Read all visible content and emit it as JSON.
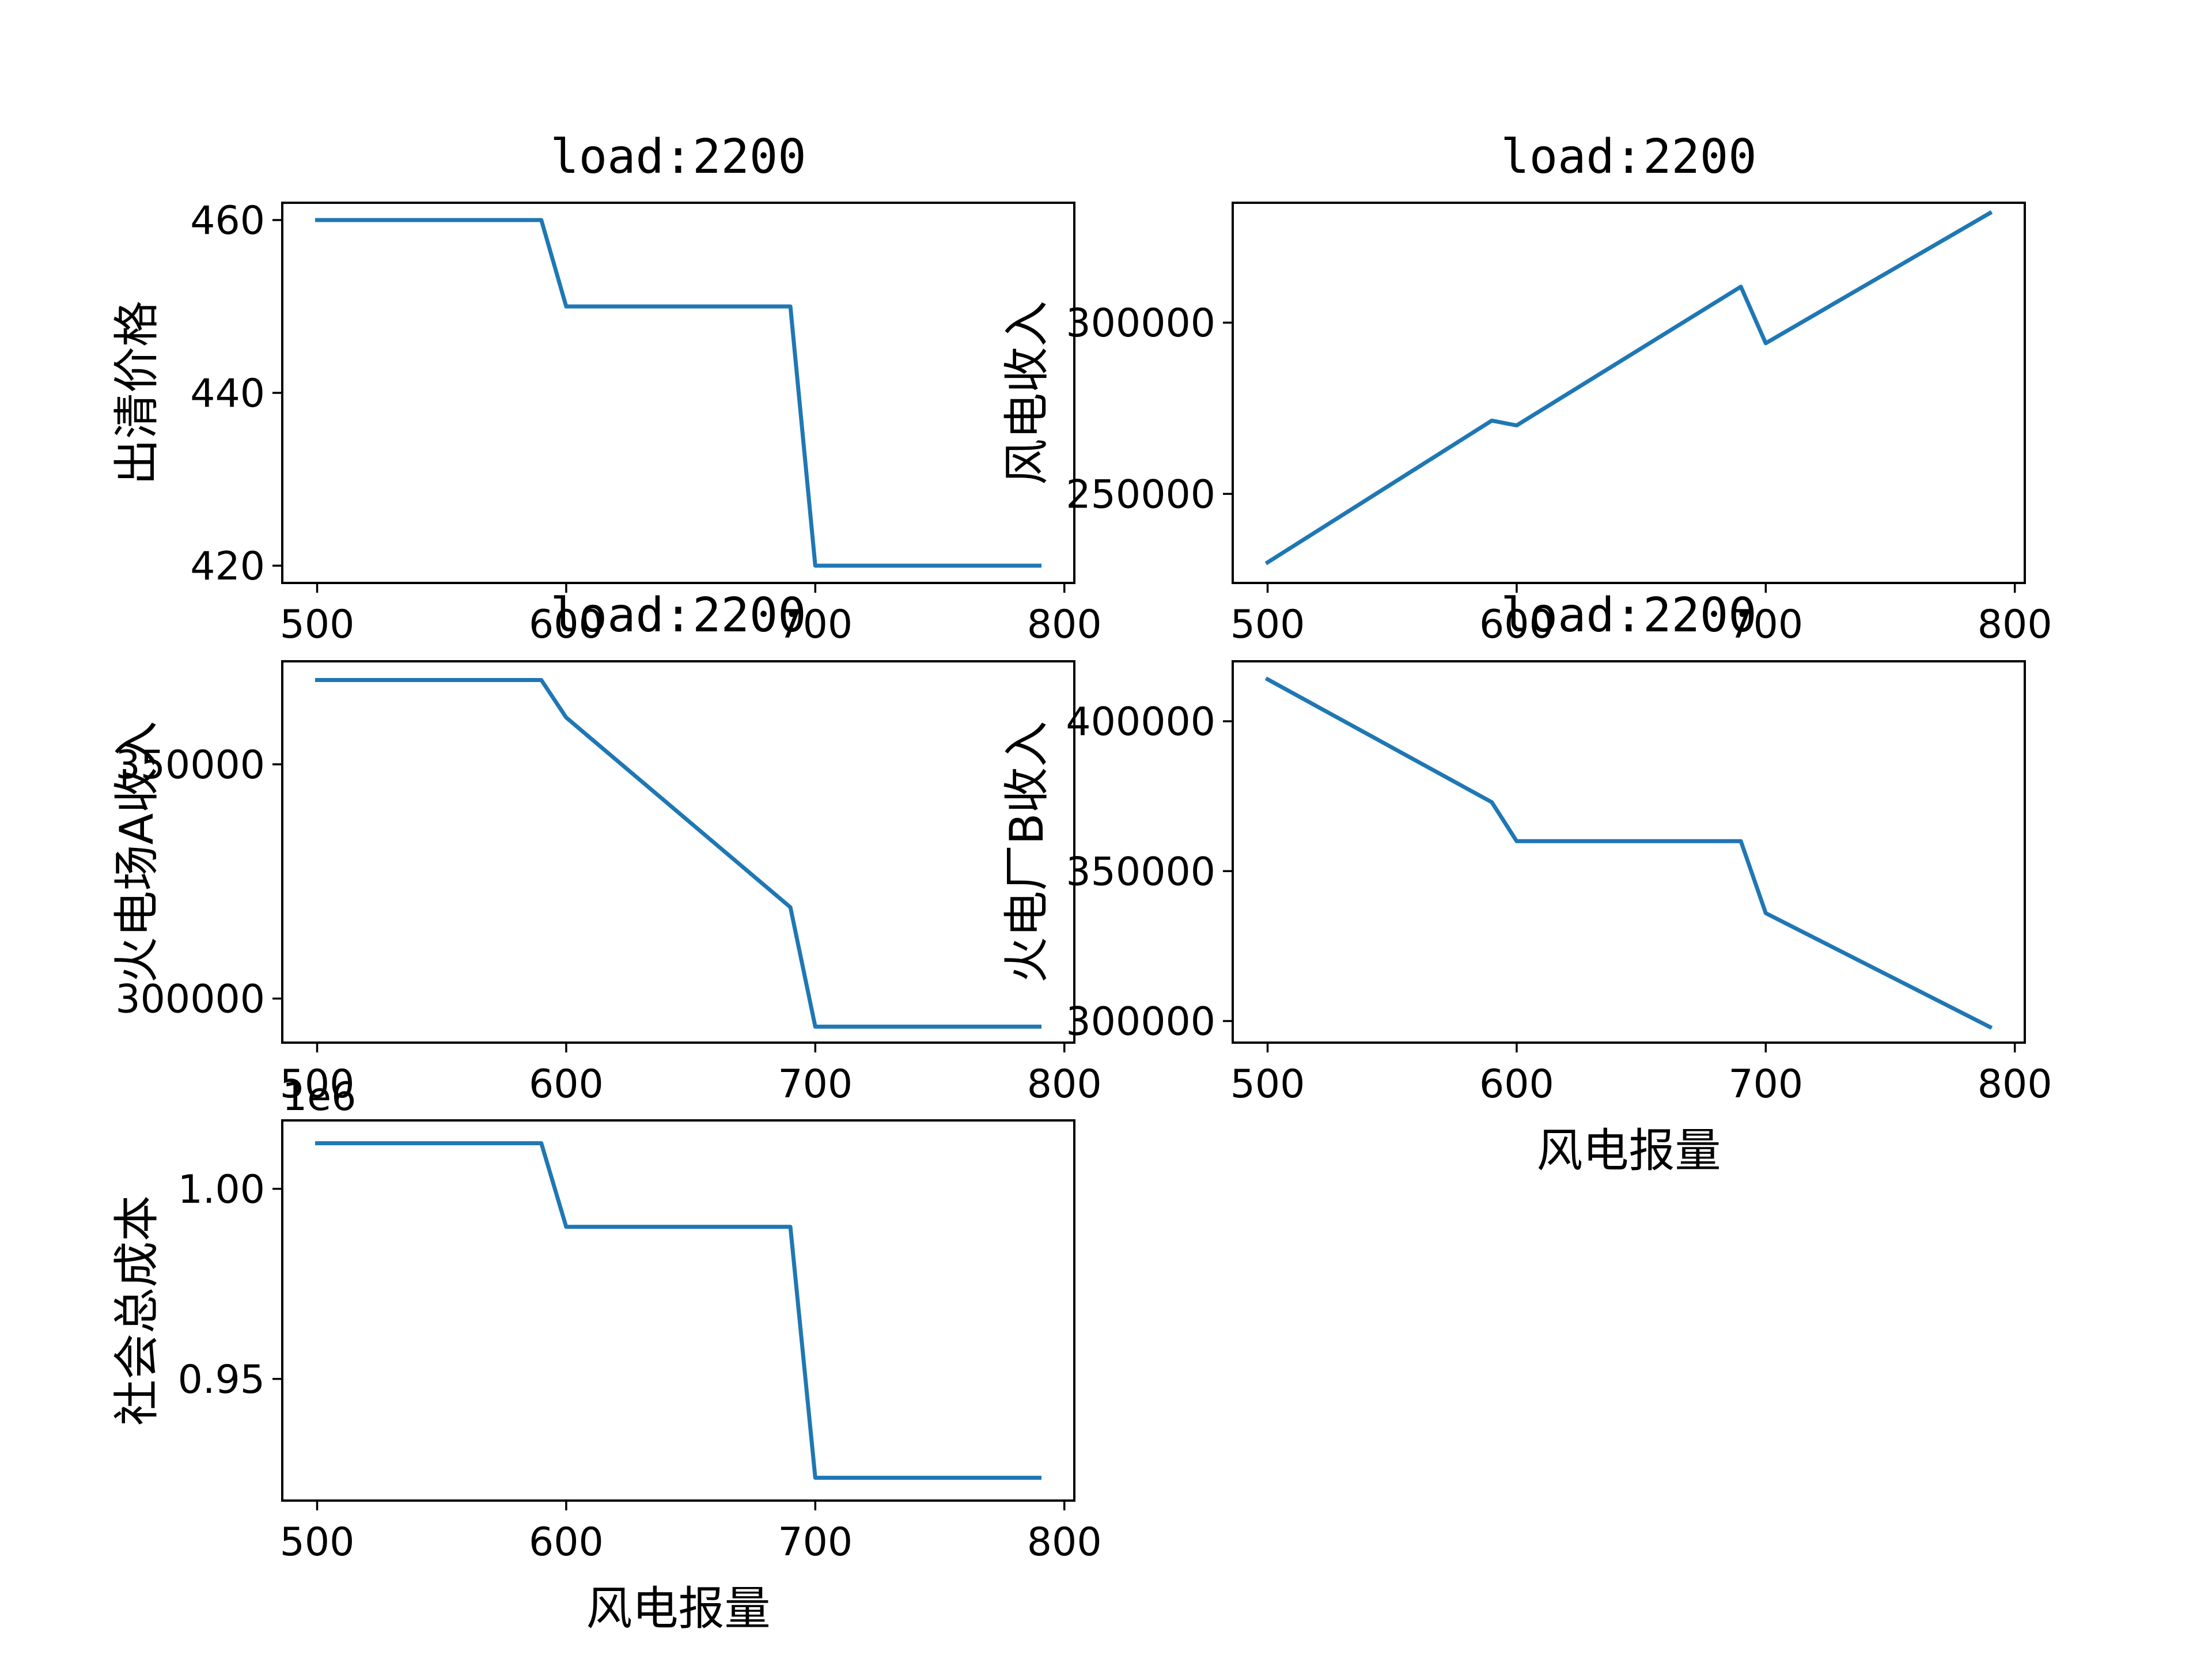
{
  "chart_data": [
    {
      "type": "line",
      "title": "load:2200",
      "xlabel": "",
      "ylabel": "出清价格",
      "xlim": [
        486,
        804
      ],
      "ylim": [
        418,
        462
      ],
      "xticks": [
        500,
        600,
        700,
        800
      ],
      "yticks": [
        420,
        440,
        460
      ],
      "ytick_labels": [
        "420",
        "440",
        "460"
      ],
      "offset_label": "",
      "series": [
        {
          "color": "#1f77b4",
          "x": [
            500,
            590,
            600,
            690,
            700,
            790
          ],
          "y": [
            460,
            460,
            450,
            450,
            420,
            420
          ]
        }
      ]
    },
    {
      "type": "line",
      "title": "load:2200",
      "xlabel": "",
      "ylabel": "风电收入",
      "xlim": [
        486,
        804
      ],
      "ylim": [
        224000,
        335000
      ],
      "xticks": [
        500,
        600,
        700,
        800
      ],
      "yticks": [
        250000,
        300000
      ],
      "ytick_labels": [
        "250000",
        "300000"
      ],
      "offset_label": "",
      "series": [
        {
          "color": "#1f77b4",
          "x": [
            500,
            590,
            600,
            690,
            700,
            790
          ],
          "y": [
            230000,
            271400,
            270000,
            310500,
            294000,
            332000
          ]
        }
      ]
    },
    {
      "type": "line",
      "title": "load:2200",
      "xlabel": "",
      "ylabel": "火电场A收入",
      "xlim": [
        486,
        804
      ],
      "ylim": [
        290600,
        372000
      ],
      "xticks": [
        500,
        600,
        700,
        800
      ],
      "yticks": [
        300000,
        350000
      ],
      "ytick_labels": [
        "300000",
        "350000"
      ],
      "offset_label": "",
      "series": [
        {
          "color": "#1f77b4",
          "x": [
            500,
            590,
            600,
            690,
            700,
            790
          ],
          "y": [
            368000,
            368000,
            360000,
            319500,
            294000,
            294000
          ]
        }
      ]
    },
    {
      "type": "line",
      "title": "load:2200",
      "xlabel": "风电报量",
      "ylabel": "火电厂B收入",
      "xlim": [
        486,
        804
      ],
      "ylim": [
        292800,
        420000
      ],
      "xticks": [
        500,
        600,
        700,
        800
      ],
      "yticks": [
        300000,
        350000,
        400000
      ],
      "ytick_labels": [
        "300000",
        "350000",
        "400000"
      ],
      "offset_label": "",
      "series": [
        {
          "color": "#1f77b4",
          "x": [
            500,
            590,
            600,
            690,
            700,
            790
          ],
          "y": [
            414000,
            373000,
            360000,
            360000,
            336000,
            298000
          ]
        }
      ]
    },
    {
      "type": "line",
      "title": "",
      "xlabel": "风电报量",
      "ylabel": "社会总成本",
      "xlim": [
        486,
        804
      ],
      "ylim": [
        0.918,
        1.018
      ],
      "xticks": [
        500,
        600,
        700,
        800
      ],
      "yticks": [
        0.95,
        1.0
      ],
      "ytick_labels": [
        "0.95",
        "1.00"
      ],
      "offset_label": "1e6",
      "series": [
        {
          "color": "#1f77b4",
          "x": [
            500,
            590,
            600,
            690,
            700,
            790
          ],
          "y": [
            1.012,
            1.012,
            0.99,
            0.99,
            0.924,
            0.924
          ]
        }
      ]
    }
  ]
}
